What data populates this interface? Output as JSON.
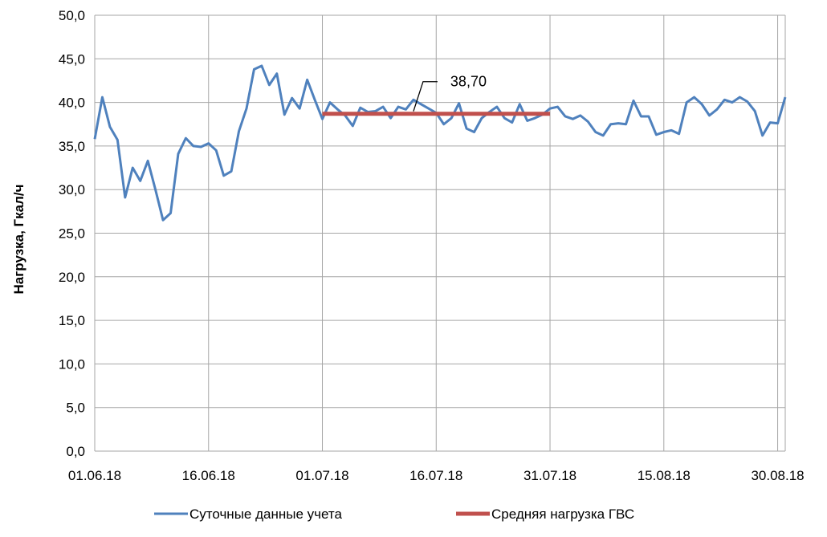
{
  "chart_data": {
    "type": "line",
    "ylabel": "Нагрузка, Гкал/ч",
    "xlabel": "",
    "ylim": [
      0,
      50
    ],
    "yticks": [
      "0,0",
      "5,0",
      "10,0",
      "15,0",
      "20,0",
      "25,0",
      "30,0",
      "35,0",
      "40,0",
      "45,0",
      "50,0"
    ],
    "xticks": [
      "01.06.18",
      "16.06.18",
      "01.07.18",
      "16.07.18",
      "31.07.18",
      "15.08.18",
      "30.08.18"
    ],
    "x_range_days": [
      0,
      91
    ],
    "grid": true,
    "legend_position": "bottom",
    "series": [
      {
        "name": "Суточные данные учета",
        "color": "#4F81BD",
        "values": [
          35.8,
          40.6,
          37.2,
          35.7,
          29.1,
          32.5,
          31.0,
          33.3,
          30.0,
          26.5,
          27.3,
          34.1,
          35.9,
          35.0,
          34.9,
          35.3,
          34.5,
          31.6,
          32.1,
          36.7,
          39.3,
          43.8,
          44.2,
          42.0,
          43.3,
          38.6,
          40.5,
          39.3,
          42.6,
          40.3,
          38.1,
          40.0,
          39.2,
          38.5,
          37.3,
          39.4,
          38.9,
          39.0,
          39.5,
          38.2,
          39.5,
          39.2,
          40.3,
          39.8,
          39.3,
          38.8,
          37.5,
          38.2,
          39.9,
          37.0,
          36.6,
          38.2,
          38.9,
          39.5,
          38.2,
          37.7,
          39.8,
          37.9,
          38.2,
          38.6,
          39.3,
          39.5,
          38.4,
          38.1,
          38.5,
          37.8,
          36.6,
          36.2,
          37.5,
          37.6,
          37.5,
          40.2,
          38.4,
          38.4,
          36.3,
          36.6,
          36.8,
          36.4,
          40.0,
          40.6,
          39.8,
          38.5,
          39.2,
          40.3,
          40.0,
          40.6,
          40.1,
          39.0,
          36.2,
          37.7,
          37.6,
          40.6
        ]
      },
      {
        "name": "Средняя нагрузка ГВС",
        "color": "#C0504D",
        "x_start_day": 30,
        "x_end_day": 60,
        "value": 38.7
      }
    ],
    "annotations": [
      {
        "text": "38,70",
        "x_day": 42,
        "y": 38.7
      }
    ]
  }
}
